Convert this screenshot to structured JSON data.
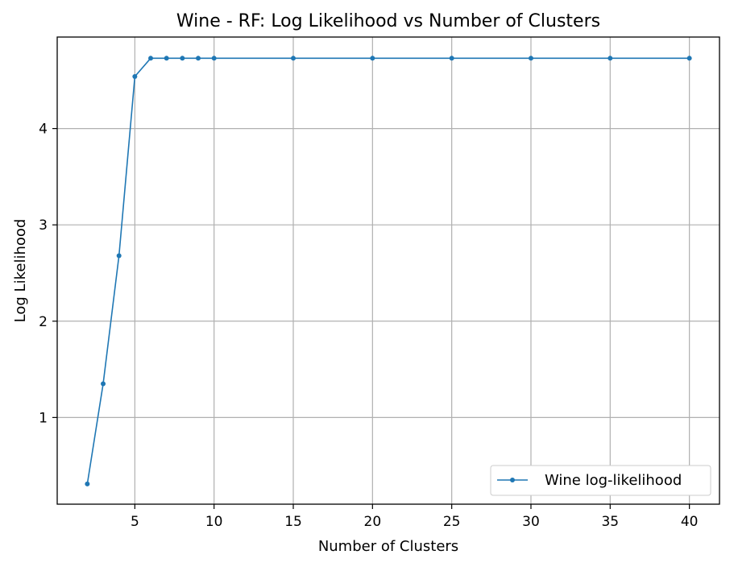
{
  "chart_data": {
    "type": "line",
    "title": "Wine - RF: Log Likelihood vs Number of Clusters",
    "xlabel": "Number of Clusters",
    "ylabel": "Log Likelihood",
    "xlim": [
      0.1,
      41.9
    ],
    "ylim": [
      0.1,
      4.95
    ],
    "xticks": [
      5,
      10,
      15,
      20,
      25,
      30,
      35,
      40
    ],
    "yticks": [
      1,
      2,
      3,
      4
    ],
    "grid": true,
    "legend_position": "lower-right",
    "series": [
      {
        "name": "Wine log-likelihood",
        "color": "#1f77b4",
        "x": [
          2,
          3,
          4,
          5,
          6,
          7,
          8,
          9,
          10,
          15,
          20,
          25,
          30,
          35,
          40
        ],
        "y": [
          0.31,
          1.35,
          2.68,
          4.54,
          4.73,
          4.73,
          4.73,
          4.73,
          4.73,
          4.73,
          4.73,
          4.73,
          4.73,
          4.73,
          4.73
        ]
      }
    ]
  }
}
